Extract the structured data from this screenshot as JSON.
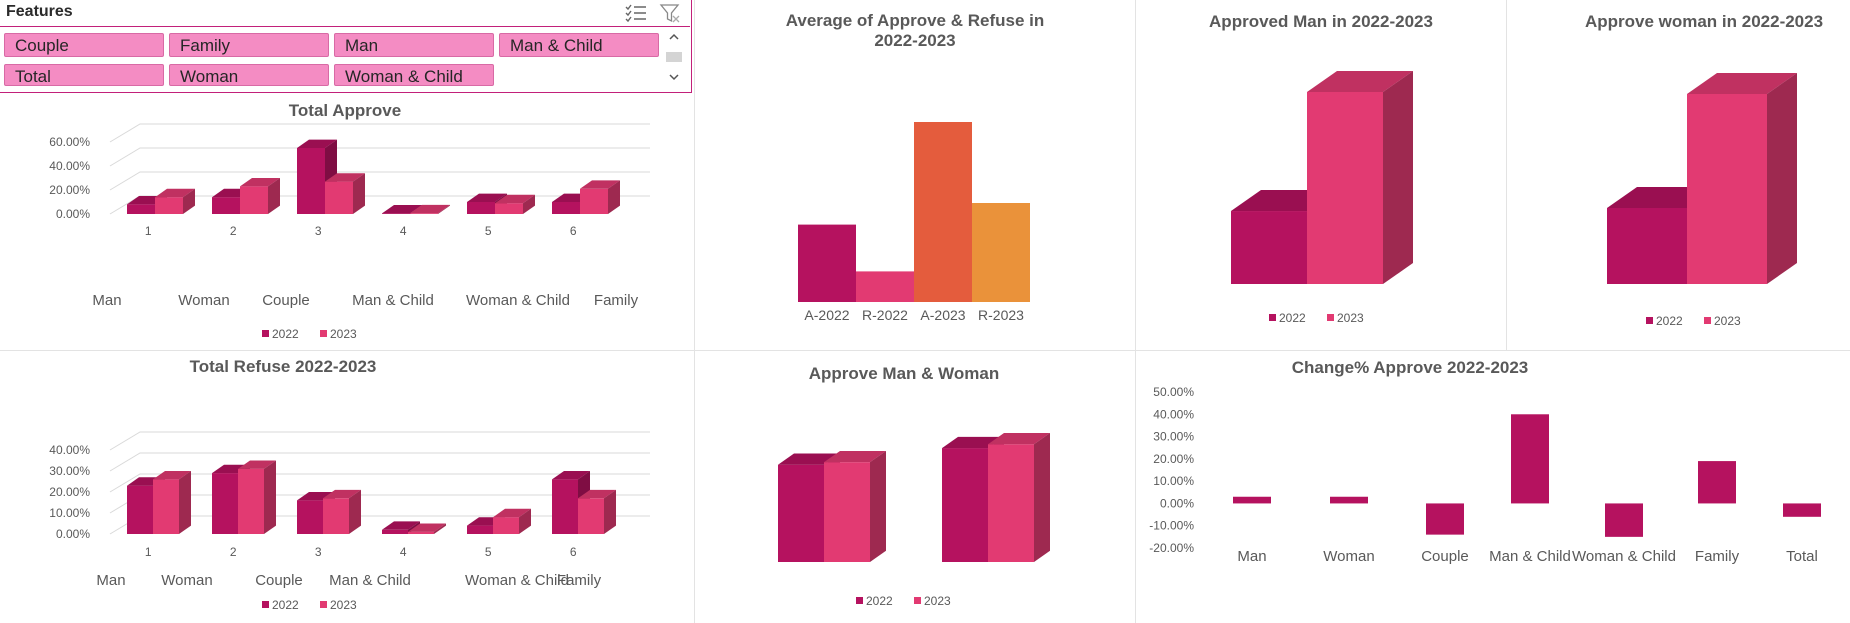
{
  "slicer": {
    "title": "Features",
    "items": [
      "Couple",
      "Family",
      "Man",
      "Man & Child",
      "Total",
      "Woman",
      "Woman & Child"
    ],
    "icons": [
      "multi-select-icon",
      "clear-filter-icon",
      "scroll-up-icon",
      "scroll-down-icon"
    ]
  },
  "colors": {
    "c2022": "#b5125f",
    "c2023": "#e23a72",
    "a2023": "#e45c3d",
    "r2023": "#ea923a",
    "slicer": "#f48cc3"
  },
  "chart_data": [
    {
      "id": "total-approve",
      "type": "bar",
      "title": "Total Approve",
      "categories": [
        "1",
        "2",
        "3",
        "4",
        "5",
        "6"
      ],
      "category_names": [
        "Man",
        "Woman",
        "Couple",
        "Man & Child",
        "Woman & Child",
        "Family"
      ],
      "series": [
        {
          "name": "2022",
          "values": [
            0.08,
            0.14,
            0.55,
            0.005,
            0.1,
            0.1
          ]
        },
        {
          "name": "2023",
          "values": [
            0.14,
            0.23,
            0.27,
            0.006,
            0.09,
            0.21
          ]
        }
      ],
      "yticks": [
        "0.00%",
        "20.00%",
        "40.00%",
        "60.00%"
      ],
      "ylim": [
        0,
        0.6
      ],
      "legend": "bottom",
      "grid": true
    },
    {
      "id": "average-approve-refuse",
      "type": "bar",
      "title": "Average of Approve & Refuse in 2022-2023",
      "categories": [
        "A-2022",
        "R-2022",
        "A-2023",
        "R-2023"
      ],
      "values": [
        0.43,
        0.17,
        1.0,
        0.55
      ]
    },
    {
      "id": "approved-man",
      "type": "bar",
      "title": "Approved Man in 2022-2023",
      "series": [
        {
          "name": "2022",
          "values": [
            0.38
          ]
        },
        {
          "name": "2023",
          "values": [
            1.0
          ]
        }
      ],
      "legend": "bottom"
    },
    {
      "id": "approve-woman",
      "type": "bar",
      "title": "Approve woman in 2022-2023",
      "series": [
        {
          "name": "2022",
          "values": [
            0.4
          ]
        },
        {
          "name": "2023",
          "values": [
            1.0
          ]
        }
      ],
      "legend": "bottom"
    },
    {
      "id": "total-refuse",
      "type": "bar",
      "title": "Total Refuse 2022-2023",
      "categories": [
        "1",
        "2",
        "3",
        "4",
        "5",
        "6"
      ],
      "category_names": [
        "Man",
        "Woman",
        "Couple",
        "Man & Child",
        "Woman & Child",
        "Family"
      ],
      "series": [
        {
          "name": "2022",
          "values": [
            0.23,
            0.29,
            0.16,
            0.02,
            0.04,
            0.26
          ]
        },
        {
          "name": "2023",
          "values": [
            0.26,
            0.31,
            0.17,
            0.01,
            0.08,
            0.17
          ]
        }
      ],
      "yticks": [
        "0.00%",
        "10.00%",
        "20.00%",
        "30.00%",
        "40.00%"
      ],
      "ylim": [
        0,
        0.4
      ],
      "legend": "bottom",
      "grid": true
    },
    {
      "id": "approve-man-woman",
      "type": "bar",
      "title": "Approve Man & Woman",
      "series": [
        {
          "name": "2022",
          "values": [
            0.76,
            0.89
          ]
        },
        {
          "name": "2023",
          "values": [
            0.78,
            0.92
          ]
        }
      ],
      "legend": "bottom"
    },
    {
      "id": "change-approve",
      "type": "bar",
      "title": "Change% Approve 2022-2023",
      "categories": [
        "Man",
        "Woman",
        "Couple",
        "Man & Child",
        "Woman & Child",
        "Family",
        "Total"
      ],
      "values": [
        0.03,
        0.03,
        -0.14,
        0.4,
        -0.15,
        0.19,
        -0.06
      ],
      "yticks": [
        "-20.00%",
        "-10.00%",
        "0.00%",
        "10.00%",
        "20.00%",
        "30.00%",
        "40.00%",
        "50.00%"
      ],
      "ylim": [
        -0.2,
        0.5
      ]
    }
  ]
}
